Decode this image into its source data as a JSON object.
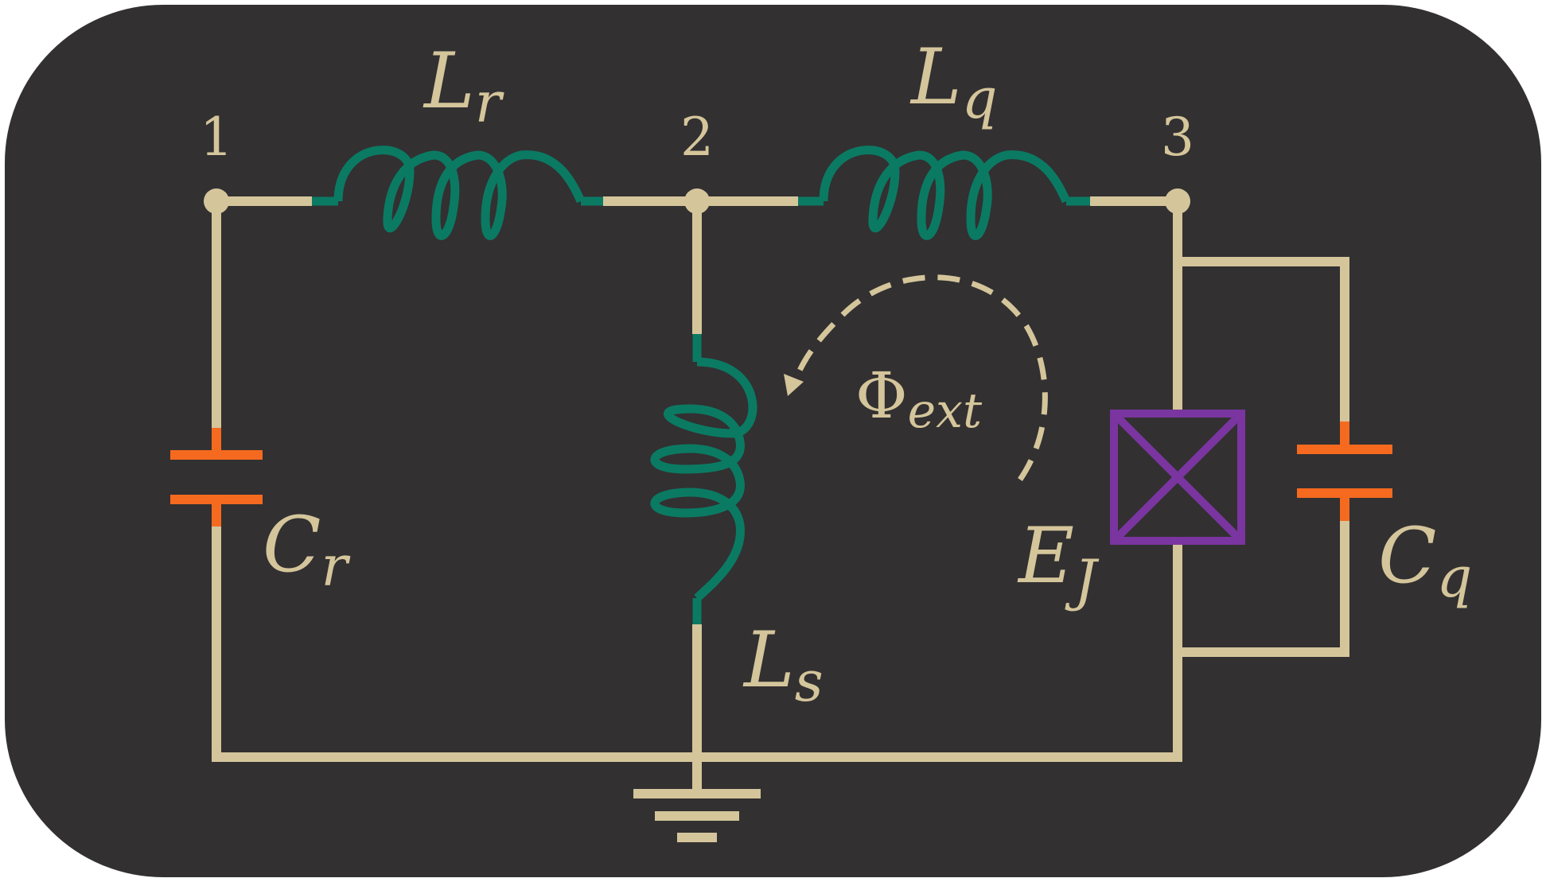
{
  "colors": {
    "background": "#323031",
    "wire": "#d4c59b",
    "inductor": "#0b7a63",
    "capacitor": "#f56a1f",
    "junction": "#7a35a0",
    "text": "#d4c59b"
  },
  "nodes": {
    "n1": "1",
    "n2": "2",
    "n3": "3"
  },
  "labels": {
    "Lr": {
      "main": "L",
      "sub": "r"
    },
    "Lq": {
      "main": "L",
      "sub": "q"
    },
    "Ls": {
      "main": "L",
      "sub": "s"
    },
    "Cr": {
      "main": "C",
      "sub": "r"
    },
    "Cq": {
      "main": "C",
      "sub": "q"
    },
    "EJ": {
      "main": "E",
      "sub": "J"
    },
    "Phi": {
      "main": "Φ",
      "sub": "ext"
    }
  },
  "icons": {
    "inductor": "coil-icon",
    "capacitor": "parallel-plates-icon",
    "junction": "crossed-box-icon",
    "ground": "ground-icon",
    "flux": "dashed-arrow-icon"
  }
}
